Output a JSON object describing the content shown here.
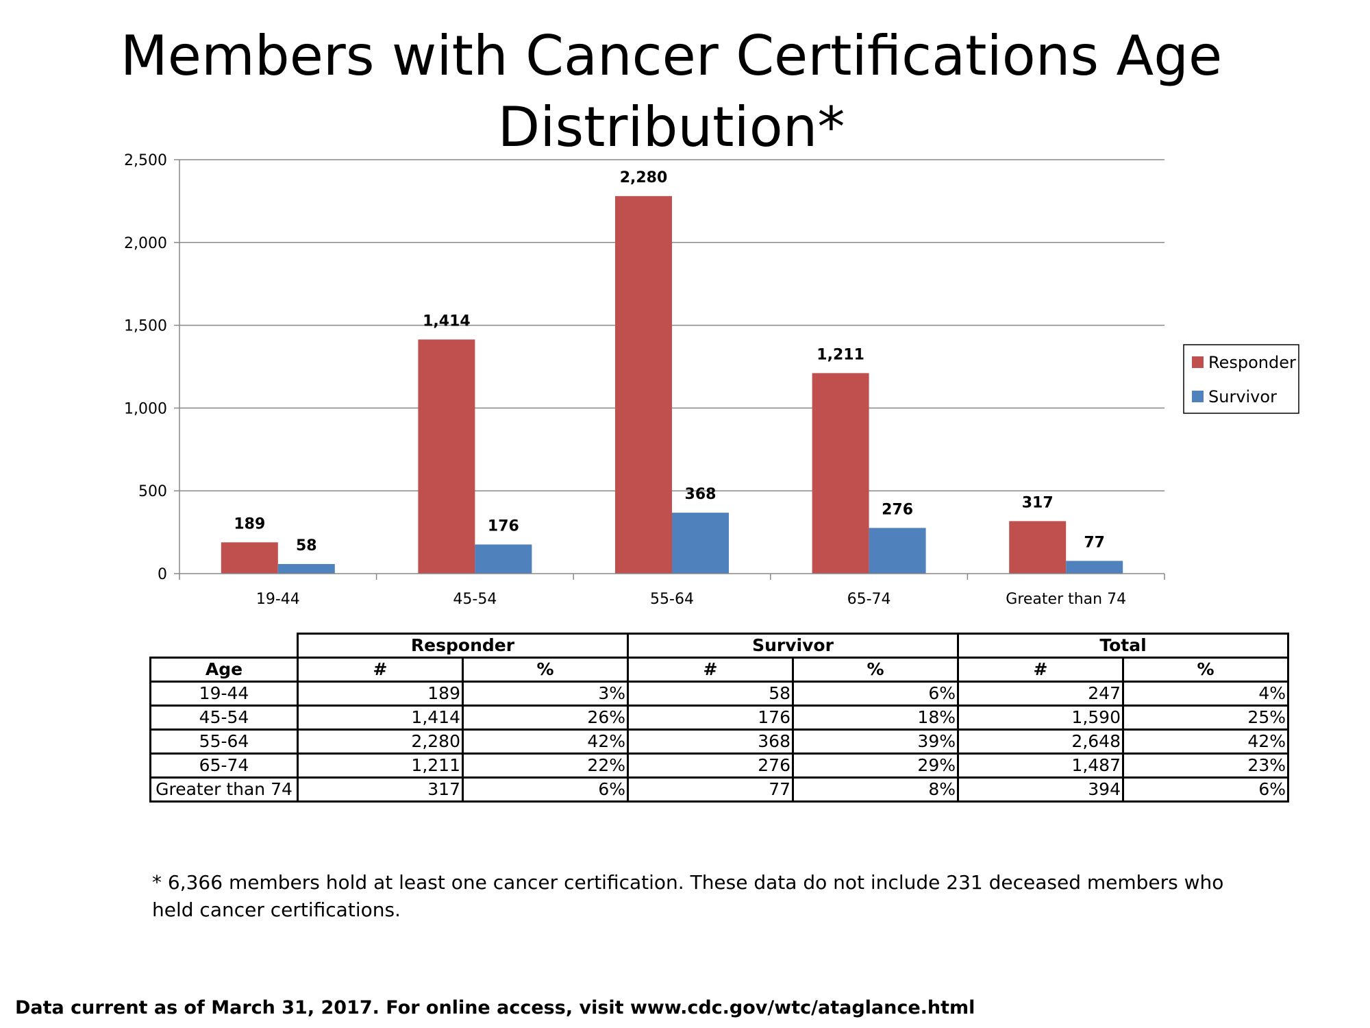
{
  "chart_data": {
    "type": "bar",
    "title": "Members with Cancer Certifications Age Distribution*",
    "categories": [
      "19-44",
      "45-54",
      "55-64",
      "65-74",
      "Greater than 74"
    ],
    "series": [
      {
        "name": "Responder",
        "color": "#c0504d",
        "values": [
          189,
          1414,
          2280,
          1211,
          317
        ],
        "labels": [
          "189",
          "1,414",
          "2,280",
          "1,211",
          "317"
        ]
      },
      {
        "name": "Survivor",
        "color": "#4f81bd",
        "values": [
          58,
          176,
          368,
          276,
          77
        ],
        "labels": [
          "58",
          "176",
          "368",
          "276",
          "77"
        ]
      }
    ],
    "ylim": [
      0,
      2500
    ],
    "yticks": [
      {
        "value": 0,
        "label": "0"
      },
      {
        "value": 500,
        "label": "500"
      },
      {
        "value": 1000,
        "label": "1,000"
      },
      {
        "value": 1500,
        "label": "1,500"
      },
      {
        "value": 2000,
        "label": "2,000"
      },
      {
        "value": 2500,
        "label": "2,500"
      }
    ],
    "grid": true,
    "legend": "right"
  },
  "table": {
    "group_headers": [
      "Responder",
      "Survivor",
      "Total"
    ],
    "col_headers": [
      "Age",
      "#",
      "%",
      "#",
      "%",
      "#",
      "%"
    ],
    "rows": [
      [
        "19-44",
        "189",
        "3%",
        "58",
        "6%",
        "247",
        "4%"
      ],
      [
        "45-54",
        "1,414",
        "26%",
        "176",
        "18%",
        "1,590",
        "25%"
      ],
      [
        "55-64",
        "2,280",
        "42%",
        "368",
        "39%",
        "2,648",
        "42%"
      ],
      [
        "65-74",
        "1,211",
        "22%",
        "276",
        "29%",
        "1,487",
        "23%"
      ],
      [
        "Greater than 74",
        "317",
        "6%",
        "77",
        "8%",
        "394",
        "6%"
      ]
    ]
  },
  "footnote": "* 6,366 members hold at least one cancer certification. These data do not include 231 deceased members who held cancer certifications.",
  "source": "Data current as of March 31, 2017. For online access, visit www.cdc.gov/wtc/ataglance.html"
}
